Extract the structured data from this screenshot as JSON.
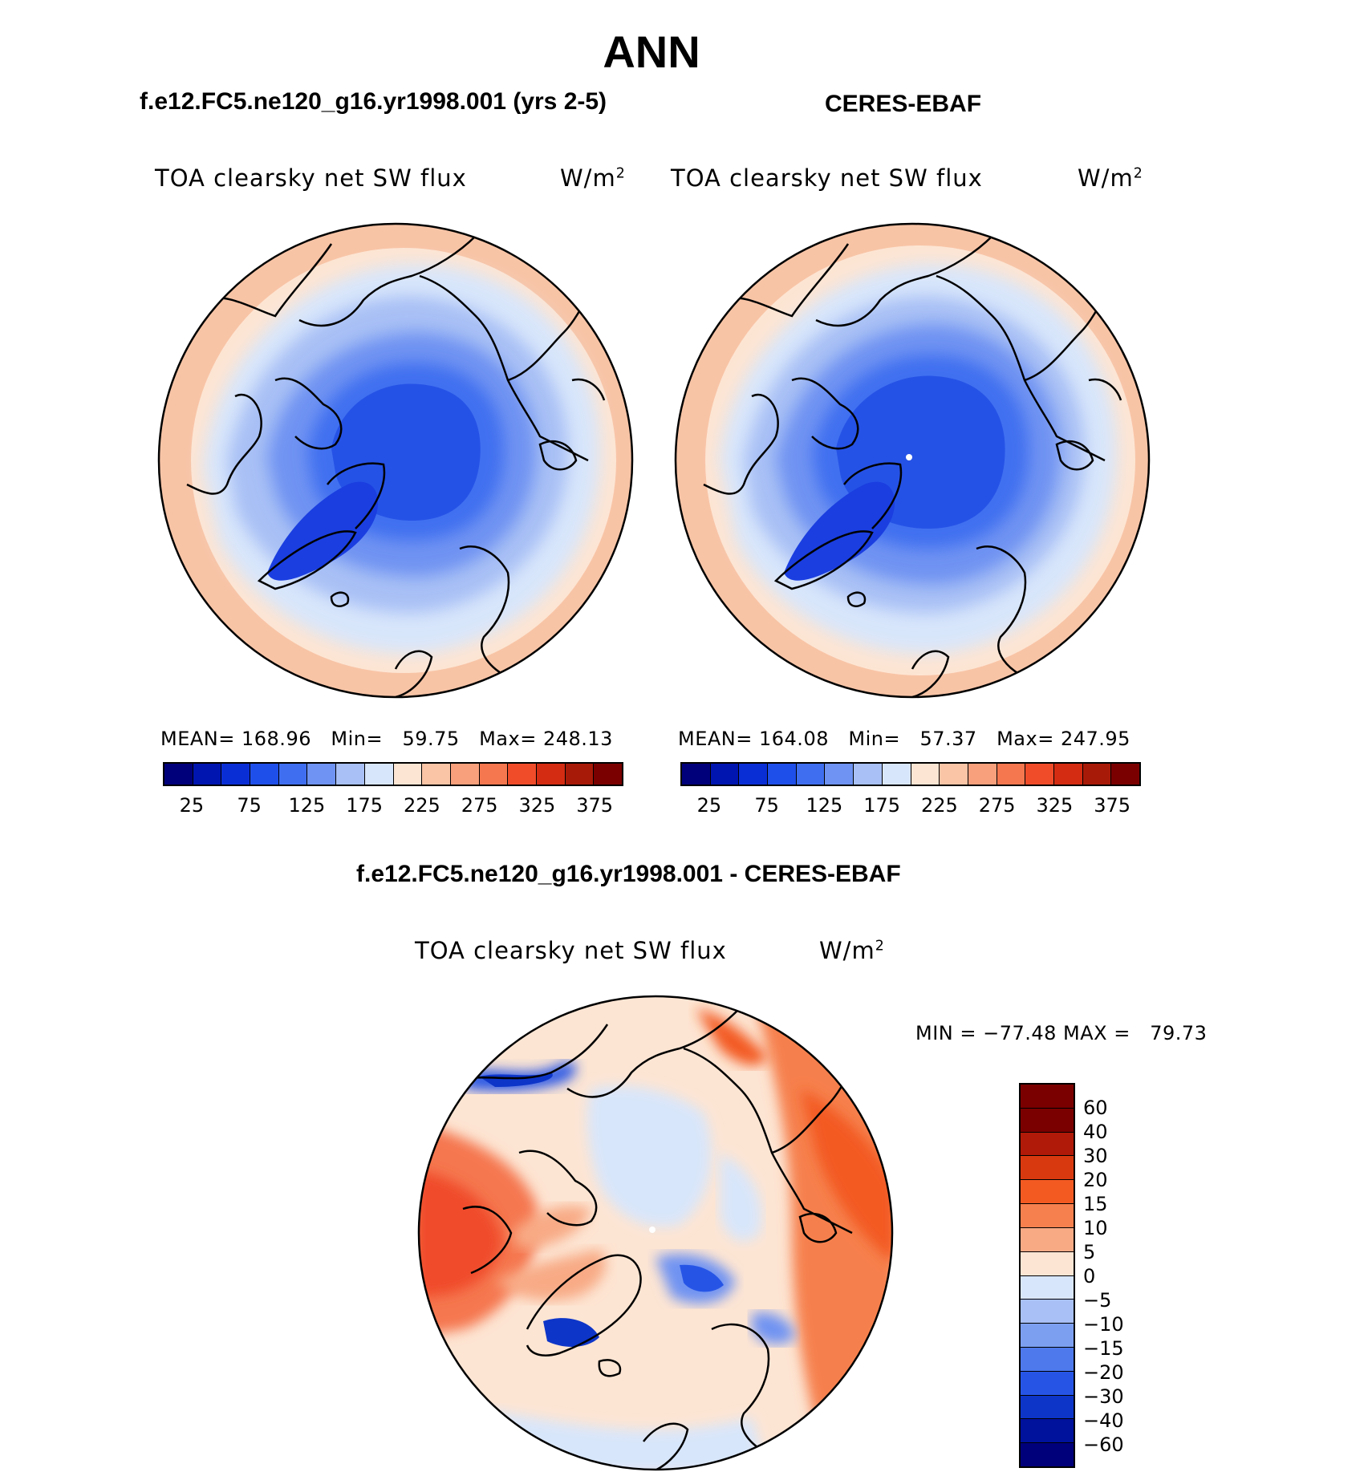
{
  "title": "ANN",
  "panels": [
    {
      "title": "f.e12.FC5.ne120_g16.yr1998.001 (yrs 2-5)",
      "variable": "TOA clearsky net SW flux",
      "units": "W/m",
      "units_sup": "2",
      "stats": {
        "mean_label": "MEAN=",
        "mean": "168.96",
        "min_label": "Min=",
        "min": "59.75",
        "max_label": "Max=",
        "max": "248.13"
      }
    },
    {
      "title": "CERES-EBAF",
      "variable": "TOA clearsky net SW flux",
      "units": "W/m",
      "units_sup": "2",
      "stats": {
        "mean_label": "MEAN=",
        "mean": "164.08",
        "min_label": "Min=",
        "min": "57.37",
        "max_label": "Max=",
        "max": "247.95"
      }
    }
  ],
  "diff": {
    "title": "f.e12.FC5.ne120_g16.yr1998.001 - CERES-EBAF",
    "variable": "TOA clearsky net SW flux",
    "units": "W/m",
    "units_sup": "2",
    "minmax": "MIN = −77.48 MAX =   79.73"
  },
  "colorbar_main": {
    "colors": [
      "#00007a",
      "#0015b0",
      "#0a2ed6",
      "#1f4fea",
      "#3f6ff0",
      "#6f93f2",
      "#a8c0f5",
      "#d8e6fb",
      "#fde5d3",
      "#fac4a6",
      "#f8a07c",
      "#f5774f",
      "#f04c2a",
      "#d42c12",
      "#a81a08",
      "#7a0000"
    ],
    "ticks": [
      "25",
      "75",
      "125",
      "175",
      "225",
      "275",
      "325",
      "375"
    ]
  },
  "colorbar_diff": {
    "colors": [
      "#7a0000",
      "#b01a08",
      "#d9390f",
      "#f35a22",
      "#f6804e",
      "#f8aa85",
      "#fde5d3",
      "#d8e6fb",
      "#a8c0f5",
      "#7c9ff0",
      "#4d79ec",
      "#2655e6",
      "#0d35c8",
      "#00119c",
      "#00007a"
    ],
    "ticks": [
      "60",
      "40",
      "30",
      "20",
      "15",
      "10",
      "5",
      "0",
      "−5",
      "−10",
      "−15",
      "−20",
      "−30",
      "−40",
      "−60"
    ]
  }
}
